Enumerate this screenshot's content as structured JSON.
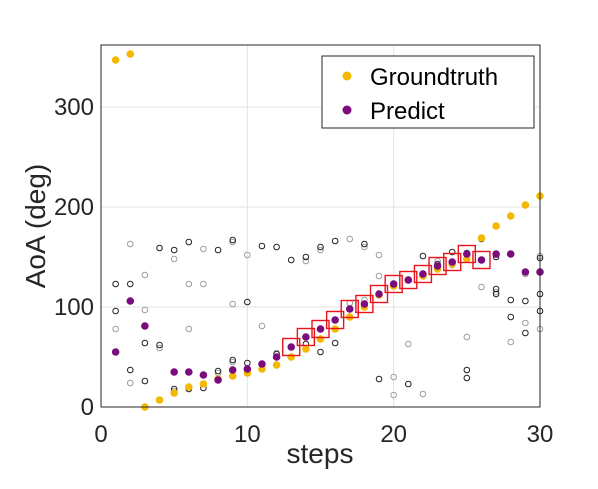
{
  "chart_data": {
    "type": "scatter",
    "title": "",
    "xlabel": "steps",
    "ylabel": "AoA (deg)",
    "xlim": [
      0,
      30
    ],
    "ylim": [
      0,
      350
    ],
    "xticks": [
      "0",
      "10",
      "20",
      "30"
    ],
    "yticks": [
      "0",
      "100",
      "200",
      "300"
    ],
    "grid": true,
    "legend_position": "top-right",
    "colors": {
      "groundtruth": "#F5B800",
      "predict": "#7B0C7D",
      "highlight_box": "#E8131B",
      "candidate_dark": "#222222",
      "candidate_light": "#9E9E9E"
    },
    "series": [
      {
        "name": "Groundtruth",
        "marker": "filled-circle",
        "points": [
          [
            1,
            347
          ],
          [
            2,
            353
          ],
          [
            3,
            0
          ],
          [
            4,
            7
          ],
          [
            5,
            14
          ],
          [
            6,
            20
          ],
          [
            7,
            23
          ],
          [
            8,
            28
          ],
          [
            9,
            31
          ],
          [
            10,
            34
          ],
          [
            11,
            38
          ],
          [
            12,
            42
          ],
          [
            13,
            50
          ],
          [
            14,
            58
          ],
          [
            15,
            68
          ],
          [
            16,
            78
          ],
          [
            17,
            90
          ],
          [
            18,
            100
          ],
          [
            19,
            112
          ],
          [
            20,
            121
          ],
          [
            21,
            127
          ],
          [
            22,
            131
          ],
          [
            23,
            138
          ],
          [
            24,
            143
          ],
          [
            25,
            148
          ],
          [
            26,
            169
          ],
          [
            27,
            181
          ],
          [
            28,
            191
          ],
          [
            29,
            202
          ],
          [
            30,
            211
          ]
        ]
      },
      {
        "name": "Predict",
        "marker": "filled-circle",
        "points": [
          [
            1,
            55
          ],
          [
            2,
            106
          ],
          [
            3,
            81
          ],
          [
            5,
            35
          ],
          [
            6,
            35
          ],
          [
            7,
            32
          ],
          [
            8,
            27
          ],
          [
            9,
            37
          ],
          [
            10,
            38
          ],
          [
            11,
            43
          ],
          [
            12,
            50
          ],
          [
            13,
            60
          ],
          [
            14,
            70
          ],
          [
            15,
            78
          ],
          [
            16,
            87
          ],
          [
            17,
            98
          ],
          [
            18,
            103
          ],
          [
            19,
            113
          ],
          [
            20,
            123
          ],
          [
            21,
            127
          ],
          [
            22,
            133
          ],
          [
            23,
            141
          ],
          [
            24,
            145
          ],
          [
            25,
            153
          ],
          [
            26,
            147
          ],
          [
            27,
            153
          ],
          [
            28,
            153
          ],
          [
            29,
            135
          ],
          [
            30,
            135
          ]
        ]
      }
    ],
    "highlighted_steps": [
      13,
      14,
      15,
      16,
      17,
      18,
      19,
      20,
      21,
      22,
      23,
      24,
      25,
      26
    ],
    "candidates_dark": [
      [
        1,
        123
      ],
      [
        1,
        96
      ],
      [
        2,
        37
      ],
      [
        2,
        123
      ],
      [
        3,
        64
      ],
      [
        3,
        26
      ],
      [
        4,
        159
      ],
      [
        4,
        62
      ],
      [
        5,
        157
      ],
      [
        5,
        18
      ],
      [
        6,
        165
      ],
      [
        6,
        18
      ],
      [
        7,
        19
      ],
      [
        8,
        157
      ],
      [
        8,
        36
      ],
      [
        9,
        167
      ],
      [
        9,
        47
      ],
      [
        10,
        105
      ],
      [
        10,
        44
      ],
      [
        11,
        161
      ],
      [
        12,
        160
      ],
      [
        12,
        53
      ],
      [
        13,
        147
      ],
      [
        14,
        150
      ],
      [
        14,
        63
      ],
      [
        15,
        160
      ],
      [
        15,
        55
      ],
      [
        16,
        166
      ],
      [
        16,
        64
      ],
      [
        18,
        163
      ],
      [
        19,
        28
      ],
      [
        21,
        23
      ],
      [
        22,
        151
      ],
      [
        23,
        143
      ],
      [
        24,
        155
      ],
      [
        25,
        37
      ],
      [
        25,
        29
      ],
      [
        25,
        154
      ],
      [
        26,
        168
      ],
      [
        27,
        118
      ],
      [
        27,
        113
      ],
      [
        27,
        150
      ],
      [
        28,
        90
      ],
      [
        28,
        107
      ],
      [
        29,
        106
      ],
      [
        29,
        74
      ],
      [
        30,
        113
      ],
      [
        30,
        149
      ],
      [
        30,
        96
      ]
    ],
    "candidates_light": [
      [
        1,
        78
      ],
      [
        2,
        163
      ],
      [
        2,
        24
      ],
      [
        3,
        132
      ],
      [
        3,
        97
      ],
      [
        4,
        59
      ],
      [
        5,
        148
      ],
      [
        5,
        16
      ],
      [
        6,
        123
      ],
      [
        6,
        78
      ],
      [
        7,
        123
      ],
      [
        7,
        158
      ],
      [
        8,
        34
      ],
      [
        9,
        165
      ],
      [
        9,
        103
      ],
      [
        9,
        45
      ],
      [
        10,
        152
      ],
      [
        11,
        81
      ],
      [
        12,
        54
      ],
      [
        14,
        146
      ],
      [
        15,
        157
      ],
      [
        17,
        168
      ],
      [
        17,
        104
      ],
      [
        18,
        160
      ],
      [
        18,
        107
      ],
      [
        19,
        152
      ],
      [
        19,
        131
      ],
      [
        20,
        30
      ],
      [
        20,
        12
      ],
      [
        21,
        63
      ],
      [
        22,
        13
      ],
      [
        23,
        146
      ],
      [
        24,
        142
      ],
      [
        25,
        70
      ],
      [
        26,
        120
      ],
      [
        27,
        115
      ],
      [
        27,
        152
      ],
      [
        28,
        65
      ],
      [
        29,
        84
      ],
      [
        29,
        133
      ],
      [
        30,
        78
      ],
      [
        30,
        151
      ]
    ]
  }
}
